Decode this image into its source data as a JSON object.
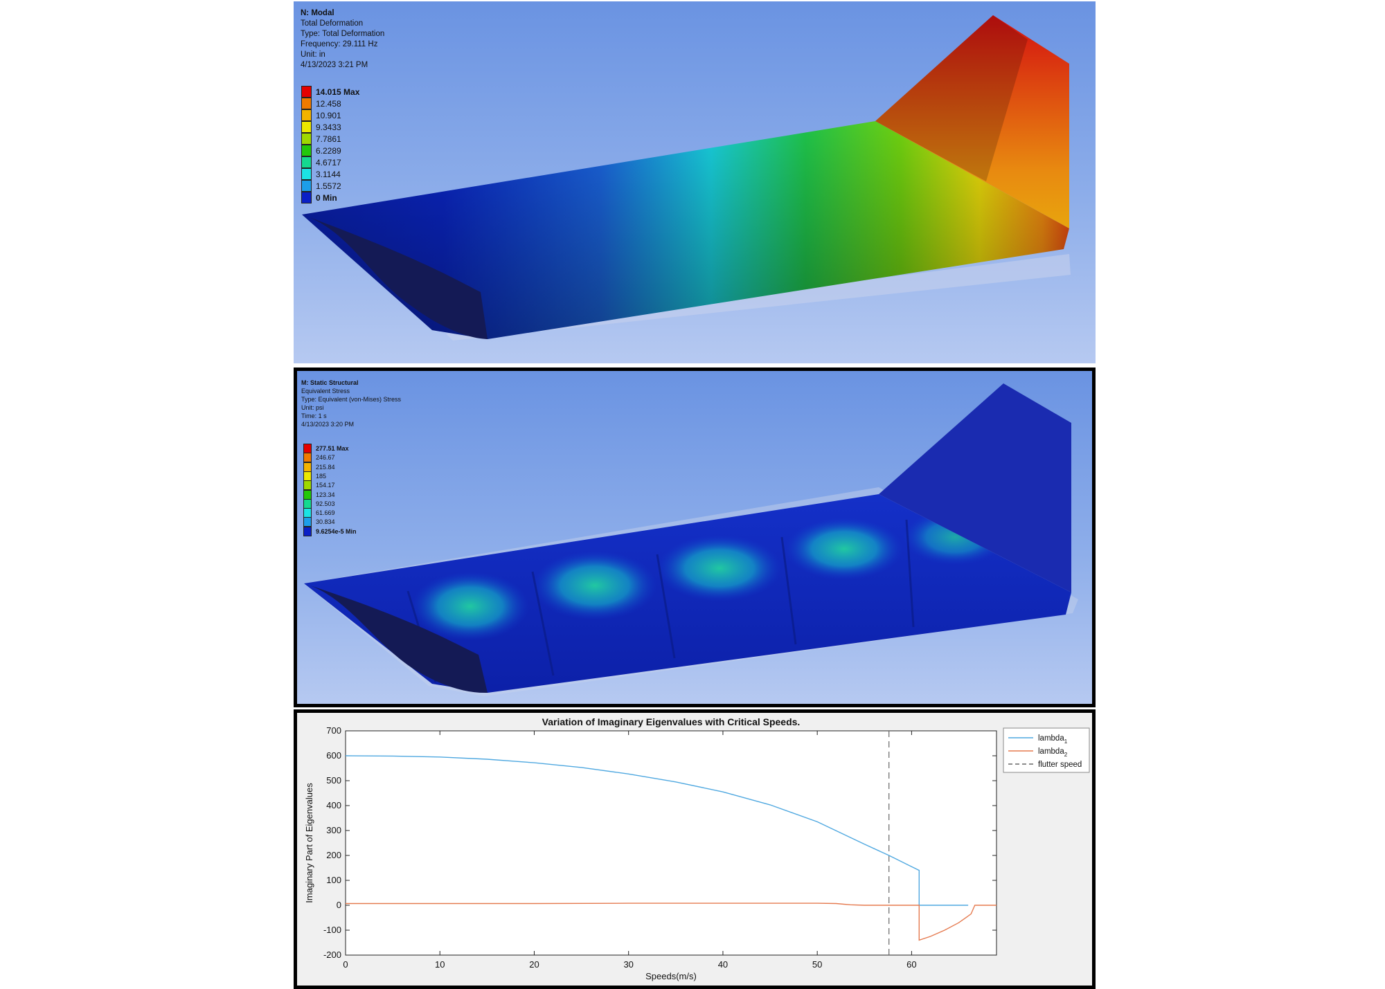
{
  "modal": {
    "title": "N: Modal",
    "lines": [
      "Total Deformation",
      "Type: Total Deformation",
      "Frequency: 29.111 Hz",
      "Unit: in",
      "4/13/2023 3:21 PM"
    ],
    "scale": [
      {
        "label": "14.015 Max",
        "color": "#e50000",
        "bold": true
      },
      {
        "label": "12.458",
        "color": "#f07a00",
        "bold": false
      },
      {
        "label": "10.901",
        "color": "#f3b300",
        "bold": false
      },
      {
        "label": "9.3433",
        "color": "#ece800",
        "bold": false
      },
      {
        "label": "7.7861",
        "color": "#9fd800",
        "bold": false
      },
      {
        "label": "6.2289",
        "color": "#22c80a",
        "bold": false
      },
      {
        "label": "4.6717",
        "color": "#15d98f",
        "bold": false
      },
      {
        "label": "3.1144",
        "color": "#1ce4e4",
        "bold": false
      },
      {
        "label": "1.5572",
        "color": "#1d9ee9",
        "bold": false
      },
      {
        "label": "0 Min",
        "color": "#0a1fc6",
        "bold": true
      }
    ]
  },
  "static": {
    "title": "M: Static Structural",
    "lines": [
      "Equivalent Stress",
      "Type: Equivalent (von-Mises) Stress",
      "Unit: psi",
      "Time: 1 s",
      "4/13/2023 3:20 PM"
    ],
    "scale": [
      {
        "label": "277.51 Max",
        "color": "#e50000",
        "bold": true
      },
      {
        "label": "246.67",
        "color": "#f07a00",
        "bold": false
      },
      {
        "label": "215.84",
        "color": "#f3b300",
        "bold": false
      },
      {
        "label": "185",
        "color": "#ece800",
        "bold": false
      },
      {
        "label": "154.17",
        "color": "#9fd800",
        "bold": false
      },
      {
        "label": "123.34",
        "color": "#22c80a",
        "bold": false
      },
      {
        "label": "92.503",
        "color": "#15d98f",
        "bold": false
      },
      {
        "label": "61.669",
        "color": "#1ce4e4",
        "bold": false
      },
      {
        "label": "30.834",
        "color": "#1d9ee9",
        "bold": false
      },
      {
        "label": "9.6254e-5 Min",
        "color": "#0a1fc6",
        "bold": true
      }
    ]
  },
  "chart_data": {
    "type": "line",
    "title": "Variation of Imaginary Eigenvalues with Critical Speeds.",
    "xlabel": "Speeds(m/s)",
    "ylabel": "Imaginary Part of Eigenvalues",
    "xlim": [
      0,
      69
    ],
    "ylim": [
      -200,
      700
    ],
    "xticks": [
      0,
      10,
      20,
      30,
      40,
      50,
      60
    ],
    "yticks": [
      -200,
      -100,
      0,
      100,
      200,
      300,
      400,
      500,
      600,
      700
    ],
    "grid": false,
    "legend_position": "top-right",
    "series": [
      {
        "name": "lambda",
        "subscript": "1",
        "color": "#4fa8e0",
        "x": [
          0,
          5,
          10,
          15,
          20,
          25,
          30,
          35,
          40,
          45,
          50,
          55,
          57.6,
          60,
          60.8,
          60.8,
          61.5,
          66
        ],
        "y": [
          600,
          599,
          595,
          586,
          572,
          553,
          527,
          495,
          455,
          403,
          335,
          245,
          200,
          155,
          140,
          0,
          0,
          0
        ]
      },
      {
        "name": "lambda",
        "subscript": "2",
        "color": "#e57a4f",
        "x": [
          0,
          10,
          20,
          30,
          40,
          50,
          52,
          53.5,
          55,
          57.6,
          60,
          60.8,
          60.8,
          62,
          63.5,
          65,
          66.3,
          66.7,
          69
        ],
        "y": [
          7,
          7,
          7,
          8,
          8,
          8,
          7,
          2,
          0,
          0,
          0,
          0,
          -140,
          -125,
          -100,
          -70,
          -35,
          0,
          0
        ]
      }
    ],
    "reference_lines": [
      {
        "name": "flutter speed",
        "x": 57.6,
        "color": "#666666",
        "style": "dashed"
      }
    ]
  }
}
